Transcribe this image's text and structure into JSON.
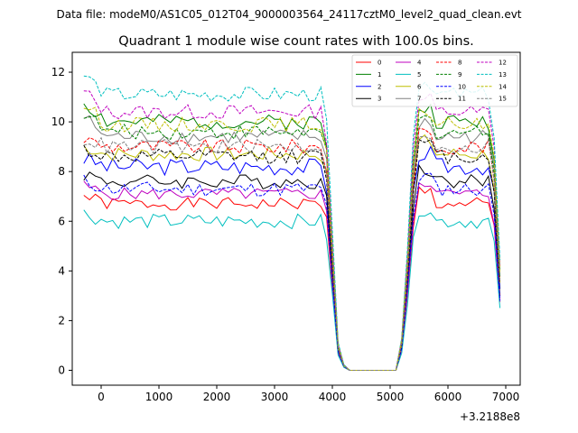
{
  "chart_data": {
    "type": "line",
    "suptitle": "Data file: modeM0/AS1C05_012T04_9000003564_24117cztM0_level2_quad_clean.evt",
    "title": "Quadrant 1 module wise count rates with 100.0s bins.",
    "xlabel": "",
    "ylabel": "",
    "x_offset_label": "+3.2188e8",
    "xlim": [
      -500,
      7250
    ],
    "ylim": [
      -0.6,
      12.8
    ],
    "xticks": [
      0,
      1000,
      2000,
      3000,
      4000,
      5000,
      6000,
      7000
    ],
    "yticks": [
      0,
      2,
      4,
      6,
      8,
      10,
      12
    ],
    "x_start": -300,
    "x_step": 100,
    "gap_profile": {
      "fall_index": [
        42,
        43,
        44,
        45,
        46
      ],
      "fall_factor": [
        0.9,
        0.5,
        0.1,
        0.02,
        0.0
      ],
      "zero_until_index": 55,
      "rise_index": [
        55,
        56,
        57,
        58
      ],
      "rise_factor": [
        0.12,
        0.45,
        0.85,
        1.0
      ],
      "end_index": 72,
      "end_factor": [
        0.85,
        0.4
      ]
    },
    "legend": {
      "placement": "top-right",
      "columns": 4
    },
    "series": [
      {
        "name": "0",
        "color": "#ff0000",
        "dash": "solid",
        "level": 6.7,
        "amp": 0.25,
        "seed": 1
      },
      {
        "name": "1",
        "color": "#008000",
        "dash": "solid",
        "level": 10.0,
        "amp": 0.3,
        "seed": 2
      },
      {
        "name": "2",
        "color": "#0000ff",
        "dash": "solid",
        "level": 8.2,
        "amp": 0.35,
        "seed": 3
      },
      {
        "name": "3",
        "color": "#000000",
        "dash": "solid",
        "level": 7.6,
        "amp": 0.3,
        "seed": 4
      },
      {
        "name": "4",
        "color": "#bf00bf",
        "dash": "solid",
        "level": 7.1,
        "amp": 0.25,
        "seed": 5
      },
      {
        "name": "5",
        "color": "#00bfbf",
        "dash": "solid",
        "level": 6.0,
        "amp": 0.3,
        "seed": 6
      },
      {
        "name": "6",
        "color": "#bfbf00",
        "dash": "solid",
        "level": 8.7,
        "amp": 0.3,
        "seed": 7
      },
      {
        "name": "7",
        "color": "#808080",
        "dash": "solid",
        "level": 9.4,
        "amp": 0.3,
        "seed": 8
      },
      {
        "name": "8",
        "color": "#ff0000",
        "dash": "dashed",
        "level": 9.0,
        "amp": 0.3,
        "seed": 9
      },
      {
        "name": "9",
        "color": "#008000",
        "dash": "dashed",
        "level": 9.6,
        "amp": 0.3,
        "seed": 10
      },
      {
        "name": "10",
        "color": "#0000ff",
        "dash": "dashed",
        "level": 7.3,
        "amp": 0.3,
        "seed": 11
      },
      {
        "name": "11",
        "color": "#000000",
        "dash": "dashed",
        "level": 8.6,
        "amp": 0.3,
        "seed": 12
      },
      {
        "name": "12",
        "color": "#bf00bf",
        "dash": "dashed",
        "level": 10.4,
        "amp": 0.3,
        "seed": 13
      },
      {
        "name": "13",
        "color": "#00bfbf",
        "dash": "dashed",
        "level": 11.1,
        "amp": 0.3,
        "seed": 14
      },
      {
        "name": "14",
        "color": "#bfbf00",
        "dash": "dashed",
        "level": 9.9,
        "amp": 0.3,
        "seed": 15
      },
      {
        "name": "15",
        "color": "#808080",
        "dash": "dashed",
        "level": 9.0,
        "amp": 0.3,
        "seed": 16
      }
    ]
  }
}
